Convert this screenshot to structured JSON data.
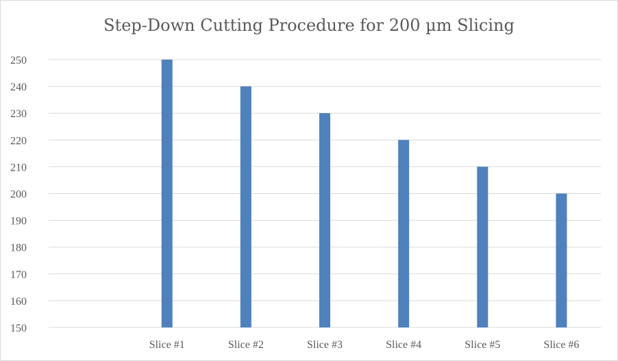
{
  "chart_data": {
    "type": "bar",
    "title": "Step-Down Cutting Procedure for 200 µm Slicing",
    "categories": [
      "",
      "Slice #1",
      "Slice #2",
      "Slice #3",
      "Slice #4",
      "Slice #5",
      "Slice #6"
    ],
    "values": [
      null,
      250,
      240,
      230,
      220,
      210,
      200
    ],
    "ylim": [
      150,
      250
    ],
    "yticks": [
      150,
      160,
      170,
      180,
      190,
      200,
      210,
      220,
      230,
      240,
      250
    ],
    "grid": true,
    "legend": "none",
    "colors": {
      "bar": "#4f81bd",
      "grid": "#d9d9d9",
      "axis_text": "#595959"
    }
  }
}
